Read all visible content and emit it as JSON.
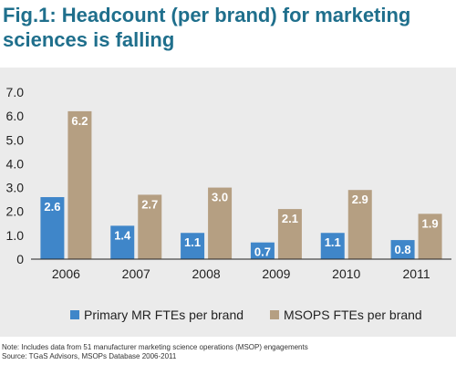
{
  "chart_data": {
    "type": "bar",
    "title": "Fig.1: Headcount (per brand) for marketing sciences is falling",
    "xlabel": "",
    "ylabel": "",
    "categories": [
      "2006",
      "2007",
      "2008",
      "2009",
      "2010",
      "2011"
    ],
    "series": [
      {
        "name": "Primary MR FTEs per brand",
        "color": "#3f86c9",
        "values": [
          2.6,
          1.4,
          1.1,
          0.7,
          1.1,
          0.8
        ]
      },
      {
        "name": "MSOPS FTEs per brand",
        "color": "#b59f82",
        "values": [
          6.2,
          2.7,
          3.0,
          2.1,
          2.9,
          1.9
        ]
      }
    ],
    "value_labels": [
      [
        "2.6",
        "1.4",
        "1.1",
        "0.7",
        "1.1",
        "0.8"
      ],
      [
        "6.2",
        "2.7",
        "3.0",
        "2.1",
        "2.9",
        "1.9"
      ]
    ],
    "ylim": [
      0,
      7
    ],
    "yticks": [
      0,
      1,
      2,
      3,
      4,
      5,
      6,
      7
    ],
    "ytick_labels": [
      "0",
      "1.0",
      "2.0",
      "3.0",
      "4.0",
      "5.0",
      "6.0",
      "7.0"
    ],
    "grid": false,
    "legend_position": "bottom"
  },
  "footer": {
    "note": "Note: Includes data from 51 manufacturer marketing science operations (MSOP) engagements",
    "source": "Source: TGaS Advisors, MSOPs Database 2006-2011"
  }
}
